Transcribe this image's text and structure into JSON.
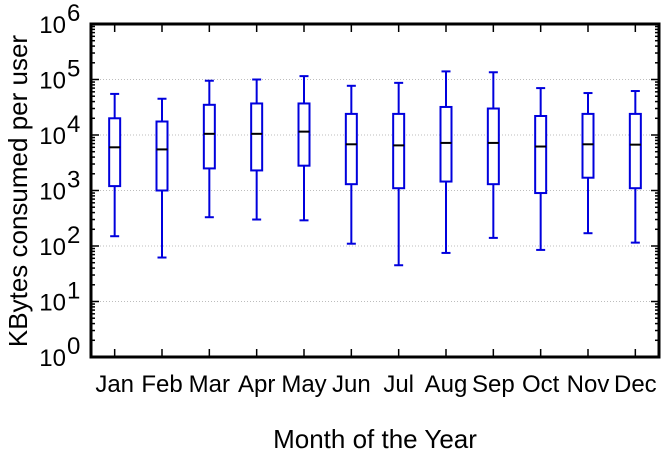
{
  "chart_data": {
    "type": "box",
    "xlabel": "Month of the Year",
    "ylabel": "KBytes consumed per user",
    "yscale": "log",
    "ylim": [
      1,
      1000000
    ],
    "ytick_exponents": [
      0,
      1,
      2,
      3,
      4,
      5,
      6
    ],
    "ytick_base": "10",
    "grid": true,
    "color": "#0000dd",
    "categories": [
      "Jan",
      "Feb",
      "Mar",
      "Apr",
      "May",
      "Jun",
      "Jul",
      "Aug",
      "Sep",
      "Oct",
      "Nov",
      "Dec"
    ],
    "boxes": [
      {
        "min": 150,
        "q1": 1200,
        "median": 6000,
        "q3": 20000,
        "max": 55000
      },
      {
        "min": 62,
        "q1": 1000,
        "median": 5500,
        "q3": 17500,
        "max": 45000
      },
      {
        "min": 330,
        "q1": 2500,
        "median": 10500,
        "q3": 35000,
        "max": 95000
      },
      {
        "min": 300,
        "q1": 2300,
        "median": 10500,
        "q3": 37000,
        "max": 100000
      },
      {
        "min": 290,
        "q1": 2800,
        "median": 11500,
        "q3": 37000,
        "max": 115000
      },
      {
        "min": 110,
        "q1": 1300,
        "median": 6800,
        "q3": 24000,
        "max": 77000
      },
      {
        "min": 45,
        "q1": 1100,
        "median": 6500,
        "q3": 24000,
        "max": 87000
      },
      {
        "min": 75,
        "q1": 1450,
        "median": 7200,
        "q3": 32000,
        "max": 140000
      },
      {
        "min": 140,
        "q1": 1300,
        "median": 7200,
        "q3": 30000,
        "max": 135000
      },
      {
        "min": 85,
        "q1": 900,
        "median": 6200,
        "q3": 22000,
        "max": 70000
      },
      {
        "min": 170,
        "q1": 1700,
        "median": 6800,
        "q3": 24000,
        "max": 57000
      },
      {
        "min": 115,
        "q1": 1100,
        "median": 6700,
        "q3": 24000,
        "max": 62000
      }
    ]
  }
}
